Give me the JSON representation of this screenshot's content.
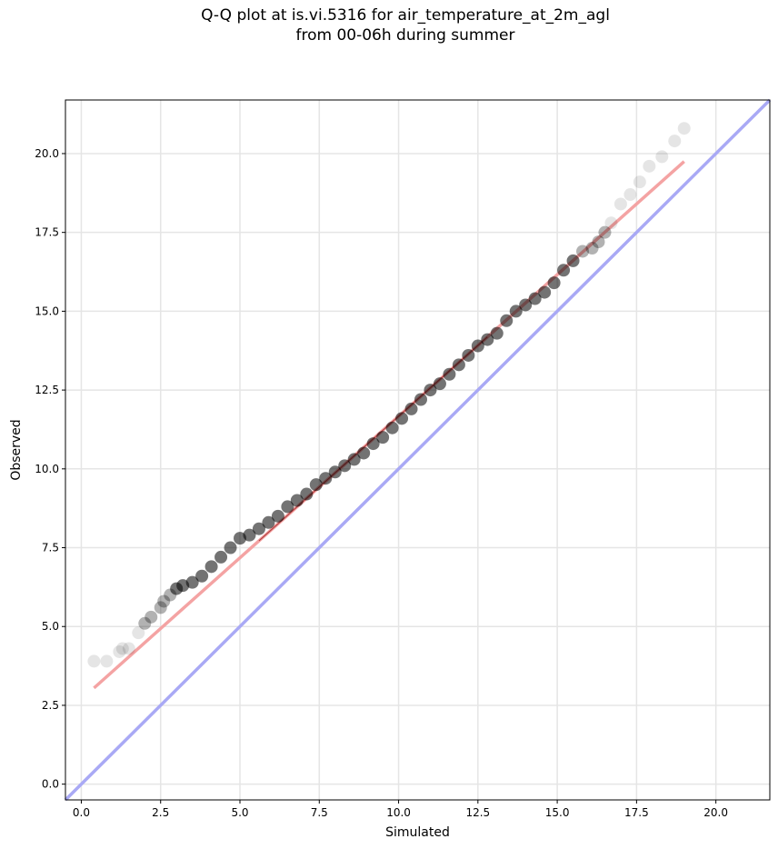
{
  "chart_data": {
    "type": "scatter",
    "title_line1": "Q-Q plot at is.vi.5316 for air_temperature_at_2m_agl",
    "title_line2": "from 00-06h during summer",
    "xlabel": "Simulated",
    "ylabel": "Observed",
    "xlim": [
      -0.5,
      21.7
    ],
    "ylim": [
      -0.5,
      21.7
    ],
    "xticks": [
      "0.0",
      "2.5",
      "5.0",
      "7.5",
      "10.0",
      "12.5",
      "15.0",
      "17.5",
      "20.0"
    ],
    "yticks": [
      "0.0",
      "2.5",
      "5.0",
      "7.5",
      "10.0",
      "12.5",
      "15.0",
      "17.5",
      "20.0"
    ],
    "grid": true,
    "colors": {
      "points": "#000000",
      "fit_line": "#f4a3a3",
      "one_to_one_line": "#a9a9f5",
      "inner_fit": "#8b0000"
    },
    "fit_line": {
      "x": [
        0.4,
        19.0
      ],
      "y": [
        3.05,
        19.75
      ]
    },
    "one_to_one_line": {
      "x": [
        -0.5,
        21.7
      ],
      "y": [
        -0.5,
        21.7
      ]
    },
    "points": {
      "x": [
        0.4,
        0.8,
        1.2,
        1.3,
        1.5,
        1.8,
        2.0,
        2.2,
        2.5,
        2.6,
        2.8,
        3.0,
        3.2,
        3.5,
        3.8,
        4.1,
        4.4,
        4.7,
        5.0,
        5.3,
        5.6,
        5.9,
        6.2,
        6.5,
        6.8,
        7.1,
        7.4,
        7.7,
        8.0,
        8.3,
        8.6,
        8.9,
        9.2,
        9.5,
        9.8,
        10.1,
        10.4,
        10.7,
        11.0,
        11.3,
        11.6,
        11.9,
        12.2,
        12.5,
        12.8,
        13.1,
        13.4,
        13.7,
        14.0,
        14.3,
        14.6,
        14.9,
        15.2,
        15.5,
        15.8,
        16.1,
        16.3,
        16.5,
        16.7,
        17.0,
        17.3,
        17.6,
        17.9,
        18.3,
        18.7,
        19.0
      ],
      "y": [
        3.9,
        3.9,
        4.2,
        4.3,
        4.3,
        4.8,
        5.1,
        5.3,
        5.6,
        5.8,
        6.0,
        6.2,
        6.3,
        6.4,
        6.6,
        6.9,
        7.2,
        7.5,
        7.8,
        7.9,
        8.1,
        8.3,
        8.5,
        8.8,
        9.0,
        9.2,
        9.5,
        9.7,
        9.9,
        10.1,
        10.3,
        10.5,
        10.8,
        11.0,
        11.3,
        11.6,
        11.9,
        12.2,
        12.5,
        12.7,
        13.0,
        13.3,
        13.6,
        13.9,
        14.1,
        14.3,
        14.7,
        15.0,
        15.2,
        15.4,
        15.6,
        15.9,
        16.3,
        16.6,
        16.9,
        17.0,
        17.2,
        17.5,
        17.8,
        18.4,
        18.7,
        19.1,
        19.6,
        19.9,
        20.4,
        20.8
      ]
    }
  }
}
